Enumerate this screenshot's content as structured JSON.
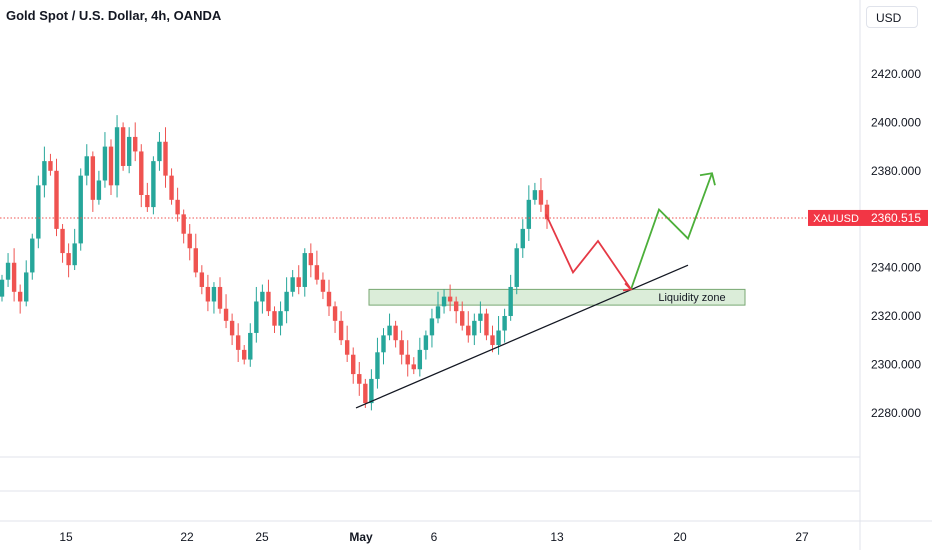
{
  "header": {
    "title": "Gold Spot / U.S. Dollar, 4h, OANDA",
    "currency": "USD"
  },
  "price_tag": {
    "symbol": "XAUUSD",
    "price": "2360.515"
  },
  "annotations": {
    "zone_label": "Liquidity zone"
  },
  "colors": {
    "up": "#26a69a",
    "down": "#ef5350",
    "price_line": "#ef5350",
    "projection_down": "#e53945",
    "projection_up": "#4caf3a",
    "zone_fill": "#d8ecd5",
    "zone_border": "#6a9e63"
  },
  "chart_data": {
    "type": "candlestick",
    "title": "Gold Spot / U.S. Dollar, 4h, OANDA",
    "y_ticks": [
      "2420.000",
      "2400.000",
      "2380.000",
      "2360.000",
      "2340.000",
      "2320.000",
      "2300.000",
      "2280.000"
    ],
    "x_ticks": [
      "15",
      "22",
      "25",
      "May",
      "6",
      "13",
      "20",
      "27"
    ],
    "ylim": [
      2263,
      2443
    ],
    "last_price": 2360.515,
    "liquidity_zone": {
      "from": 2324.5,
      "to": 2331
    },
    "trendline": [
      {
        "x": "May",
        "y": 2282
      },
      {
        "x": "20",
        "y": 2341
      }
    ],
    "projection": [
      2362,
      2338,
      2351,
      2331,
      2364,
      2352,
      2379
    ],
    "candles_close": [
      2335,
      2342,
      2330,
      2326,
      2338,
      2352,
      2374,
      2384,
      2380,
      2356,
      2346,
      2341,
      2350,
      2378,
      2386,
      2368,
      2376,
      2390,
      2374,
      2398,
      2382,
      2394,
      2388,
      2370,
      2365,
      2384,
      2392,
      2378,
      2368,
      2362,
      2354,
      2348,
      2338,
      2332,
      2326,
      2332,
      2323,
      2318,
      2312,
      2306,
      2302,
      2313,
      2326,
      2330,
      2322,
      2316,
      2322,
      2330,
      2336,
      2332,
      2346,
      2341,
      2335,
      2330,
      2324,
      2318,
      2310,
      2304,
      2296,
      2292,
      2284,
      2294,
      2305,
      2312,
      2316,
      2310,
      2304,
      2300,
      2298,
      2306,
      2312,
      2319,
      2324,
      2328,
      2326,
      2322,
      2316,
      2312,
      2318,
      2321,
      2312,
      2308,
      2314,
      2320,
      2332,
      2348,
      2356,
      2368,
      2372,
      2366,
      2360
    ]
  }
}
